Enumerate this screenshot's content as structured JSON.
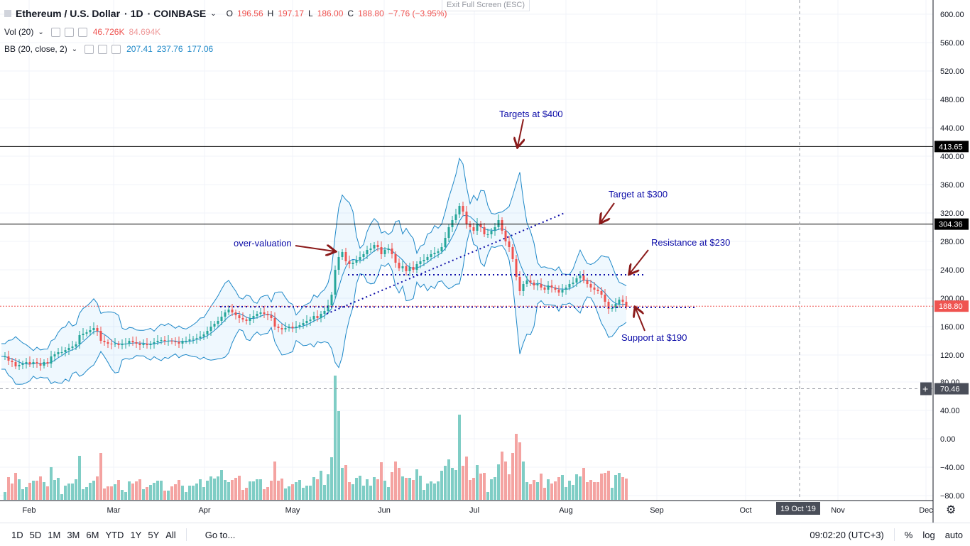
{
  "header": {
    "symbol": "Ethereum / U.S. Dollar",
    "interval": "1D",
    "exchange": "COINBASE",
    "open_label": "O",
    "open": "196.56",
    "high_label": "H",
    "high": "197.17",
    "low_label": "L",
    "low": "186.00",
    "close_label": "C",
    "close": "188.80",
    "change": "−7.76 (−3.95%)"
  },
  "indicators": {
    "vol": {
      "name": "Vol (20)",
      "v1": "46.726K",
      "v2": "84.694K"
    },
    "bb": {
      "name": "BB (20, close, 2)",
      "mid": "207.41",
      "upper": "237.76",
      "lower": "177.06"
    }
  },
  "exit_fullscreen": "Exit Full Screen (ESC)",
  "toolbar": {
    "ranges": [
      "1D",
      "5D",
      "1M",
      "3M",
      "6M",
      "YTD",
      "1Y",
      "5Y",
      "All"
    ],
    "goto": "Go to...",
    "time": "09:02:20 (UTC+3)",
    "percent": "%",
    "log": "log",
    "auto": "auto"
  },
  "chart_data": {
    "type": "candlestick",
    "price_axis_ticks": [
      120,
      160,
      200,
      240,
      280,
      320,
      360,
      400,
      440,
      480,
      520,
      560,
      600
    ],
    "price_tick_labels": [
      "120.00",
      "160.00",
      "200.00",
      "240.00",
      "280.00",
      "320.00",
      "360.00",
      "400.00",
      "440.00",
      "480.00",
      "520.00",
      "560.00",
      "600.00"
    ],
    "volume_axis_ticks": [
      -80,
      -40,
      0,
      40,
      80
    ],
    "volume_tick_labels": [
      "−80.00",
      "−40.00",
      "0.00",
      "40.00",
      "80.00"
    ],
    "time_labels": [
      "Feb",
      "Mar",
      "Apr",
      "May",
      "Jun",
      "Jul",
      "Aug",
      "Sep",
      "Oct",
      "Nov",
      "Dec"
    ],
    "cursor_date_label": "19 Oct '19",
    "cursor_value_label": "70.46",
    "cursor_value": 70.46,
    "price_markers": [
      {
        "value": 413.65,
        "label": "413.65",
        "color": "#000000"
      },
      {
        "value": 304.36,
        "label": "304.36",
        "color": "#000000"
      },
      {
        "value": 188.8,
        "label": "188.80",
        "color": "#ef5350"
      }
    ],
    "colors": {
      "up": "#26a69a",
      "down": "#ef5350",
      "vol_up": "#7fcdc5",
      "vol_down": "#f4a3a1",
      "bb": "#1e88c8",
      "annotation": "#0c0ca8",
      "arrow": "#8b1a1a"
    },
    "annotations": [
      {
        "text": "Targets at $400"
      },
      {
        "text": "Target at $300"
      },
      {
        "text": "over-valuation"
      },
      {
        "text": "Resistance at $230"
      },
      {
        "text": "Support at $190"
      }
    ],
    "candles_path": [
      [
        0,
        118
      ],
      [
        5,
        118
      ],
      [
        10,
        112
      ],
      [
        15,
        110
      ],
      [
        20,
        104
      ],
      [
        25,
        106
      ],
      [
        30,
        108
      ],
      [
        35,
        110
      ],
      [
        40,
        107
      ],
      [
        45,
        110
      ],
      [
        50,
        108
      ],
      [
        55,
        105
      ],
      [
        60,
        110
      ],
      [
        65,
        108
      ],
      [
        70,
        118
      ],
      [
        75,
        121
      ],
      [
        80,
        124
      ],
      [
        85,
        124
      ],
      [
        90,
        127
      ],
      [
        95,
        130
      ],
      [
        100,
        132
      ],
      [
        105,
        135
      ],
      [
        110,
        148
      ],
      [
        115,
        150
      ],
      [
        120,
        152
      ],
      [
        125,
        155
      ],
      [
        130,
        158
      ],
      [
        135,
        154
      ],
      [
        140,
        140
      ],
      [
        145,
        138
      ],
      [
        150,
        136
      ],
      [
        155,
        135
      ],
      [
        160,
        136
      ],
      [
        165,
        134
      ],
      [
        170,
        136
      ],
      [
        175,
        136
      ],
      [
        180,
        140
      ],
      [
        185,
        138
      ],
      [
        190,
        136
      ],
      [
        195,
        134
      ],
      [
        200,
        136
      ],
      [
        205,
        134
      ],
      [
        210,
        136
      ],
      [
        215,
        138
      ],
      [
        220,
        140
      ],
      [
        225,
        141
      ],
      [
        230,
        140
      ],
      [
        235,
        140
      ],
      [
        240,
        139
      ],
      [
        245,
        138
      ],
      [
        250,
        136
      ],
      [
        255,
        140
      ],
      [
        260,
        140
      ],
      [
        265,
        142
      ],
      [
        270,
        143
      ],
      [
        275,
        144
      ],
      [
        280,
        146
      ],
      [
        285,
        149
      ],
      [
        290,
        154
      ],
      [
        295,
        160
      ],
      [
        300,
        164
      ],
      [
        305,
        168
      ],
      [
        310,
        174
      ],
      [
        315,
        180
      ],
      [
        320,
        184
      ],
      [
        325,
        180
      ],
      [
        330,
        176
      ],
      [
        335,
        172
      ],
      [
        340,
        170
      ],
      [
        345,
        168
      ],
      [
        350,
        172
      ],
      [
        355,
        175
      ],
      [
        360,
        178
      ],
      [
        365,
        180
      ],
      [
        370,
        178
      ],
      [
        375,
        176
      ],
      [
        380,
        172
      ],
      [
        385,
        160
      ],
      [
        390,
        158
      ],
      [
        395,
        156
      ],
      [
        400,
        158
      ],
      [
        405,
        160
      ],
      [
        410,
        158
      ],
      [
        415,
        160
      ],
      [
        420,
        162
      ],
      [
        425,
        165
      ],
      [
        430,
        168
      ],
      [
        435,
        170
      ],
      [
        440,
        175
      ],
      [
        445,
        172
      ],
      [
        450,
        178
      ],
      [
        455,
        182
      ],
      [
        460,
        190
      ],
      [
        465,
        205
      ],
      [
        470,
        240
      ],
      [
        475,
        258
      ],
      [
        480,
        265
      ],
      [
        485,
        252
      ],
      [
        490,
        248
      ],
      [
        495,
        250
      ],
      [
        500,
        254
      ],
      [
        505,
        258
      ],
      [
        510,
        262
      ],
      [
        515,
        268
      ],
      [
        520,
        270
      ],
      [
        525,
        275
      ],
      [
        530,
        272
      ],
      [
        535,
        262
      ],
      [
        540,
        268
      ],
      [
        545,
        270
      ],
      [
        550,
        262
      ],
      [
        555,
        250
      ],
      [
        560,
        242
      ],
      [
        565,
        245
      ],
      [
        570,
        238
      ],
      [
        575,
        244
      ],
      [
        580,
        240
      ],
      [
        585,
        248
      ],
      [
        590,
        252
      ],
      [
        595,
        254
      ],
      [
        600,
        258
      ],
      [
        605,
        262
      ],
      [
        610,
        264
      ],
      [
        615,
        266
      ],
      [
        620,
        272
      ],
      [
        625,
        285
      ],
      [
        630,
        300
      ],
      [
        635,
        310
      ],
      [
        640,
        318
      ],
      [
        645,
        330
      ],
      [
        650,
        322
      ],
      [
        655,
        305
      ],
      [
        660,
        300
      ],
      [
        665,
        295
      ],
      [
        670,
        305
      ],
      [
        675,
        300
      ],
      [
        680,
        290
      ],
      [
        685,
        290
      ],
      [
        690,
        295
      ],
      [
        695,
        300
      ],
      [
        700,
        310
      ],
      [
        705,
        295
      ],
      [
        710,
        280
      ],
      [
        715,
        272
      ],
      [
        720,
        255
      ],
      [
        725,
        230
      ],
      [
        730,
        210
      ],
      [
        735,
        220
      ],
      [
        740,
        225
      ],
      [
        745,
        222
      ],
      [
        750,
        218
      ],
      [
        755,
        220
      ],
      [
        760,
        215
      ],
      [
        765,
        212
      ],
      [
        770,
        218
      ],
      [
        775,
        215
      ],
      [
        780,
        212
      ],
      [
        785,
        208
      ],
      [
        790,
        212
      ],
      [
        795,
        215
      ],
      [
        800,
        220
      ],
      [
        805,
        222
      ],
      [
        810,
        228
      ],
      [
        815,
        232
      ],
      [
        820,
        225
      ],
      [
        825,
        220
      ],
      [
        830,
        215
      ],
      [
        835,
        212
      ],
      [
        840,
        210
      ],
      [
        845,
        205
      ],
      [
        850,
        195
      ],
      [
        855,
        185
      ],
      [
        860,
        186
      ],
      [
        865,
        192
      ],
      [
        870,
        198
      ],
      [
        875,
        195
      ],
      [
        880,
        188
      ]
    ]
  }
}
